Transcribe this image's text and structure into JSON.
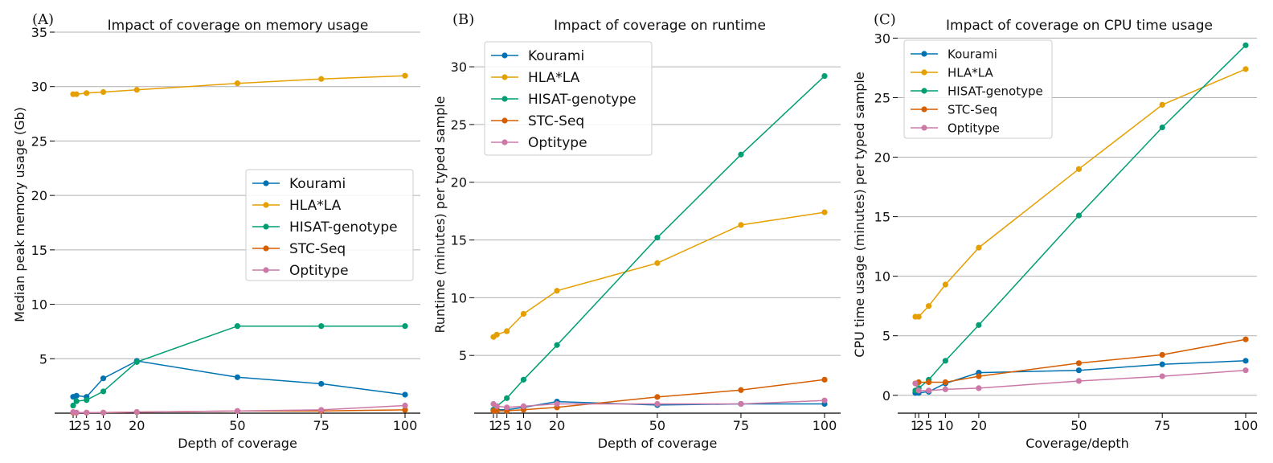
{
  "colors": {
    "Kourami": "#0072B2",
    "HLA*LA": "#E69F00",
    "HISAT-genotype": "#009E73",
    "STC-Seq": "#D55E00",
    "Optitype": "#CC79A7",
    "grid": "#b0b0b0",
    "axis": "#000000"
  },
  "chart_data": [
    {
      "type": "line",
      "panel": "(A)",
      "title": "Impact of coverage on memory usage",
      "xlabel": "Depth of coverage",
      "ylabel": "Median peak memory usage (Gb)",
      "x": [
        1,
        2,
        5,
        10,
        20,
        50,
        75,
        100
      ],
      "xticks": [
        1,
        2,
        5,
        10,
        20,
        50,
        75,
        100
      ],
      "xtick_labels": [
        "1",
        "2",
        "5",
        "10",
        "20",
        "50",
        "75",
        "100"
      ],
      "yticks": [
        5,
        10,
        15,
        20,
        25,
        30,
        35
      ],
      "ylim": [
        0,
        35
      ],
      "grid": "y",
      "legend": "center-right",
      "series": [
        {
          "name": "Kourami",
          "values": [
            1.5,
            1.6,
            1.5,
            3.2,
            4.8,
            3.3,
            2.7,
            1.7
          ]
        },
        {
          "name": "HLA*LA",
          "values": [
            29.3,
            29.3,
            29.4,
            29.5,
            29.7,
            30.3,
            30.7,
            31.0
          ]
        },
        {
          "name": "HISAT-genotype",
          "values": [
            0.7,
            1.1,
            1.2,
            2.0,
            4.7,
            8.0,
            8.0,
            8.0
          ]
        },
        {
          "name": "STC-Seq",
          "values": [
            0.05,
            0.05,
            0.05,
            0.05,
            0.1,
            0.2,
            0.2,
            0.3
          ]
        },
        {
          "name": "Optitype",
          "values": [
            0.1,
            0.05,
            0.05,
            0.05,
            0.1,
            0.2,
            0.3,
            0.7
          ]
        }
      ]
    },
    {
      "type": "line",
      "panel": "(B)",
      "title": "Impact of coverage on runtime",
      "xlabel": "Depth of coverage",
      "ylabel": "Runtime (minutes) per typed sample",
      "x": [
        1,
        2,
        5,
        10,
        20,
        50,
        75,
        100
      ],
      "xticks": [
        1,
        2,
        5,
        10,
        20,
        50,
        75,
        100
      ],
      "xtick_labels": [
        "1",
        "2",
        "5",
        "10",
        "20",
        "50",
        "75",
        "100"
      ],
      "yticks": [
        5,
        10,
        15,
        20,
        25,
        30
      ],
      "ylim": [
        0,
        33
      ],
      "grid": "y",
      "legend": "upper-left",
      "series": [
        {
          "name": "Kourami",
          "values": [
            0.3,
            0.3,
            0.3,
            0.5,
            1.0,
            0.7,
            0.8,
            0.8
          ]
        },
        {
          "name": "HLA*LA",
          "values": [
            6.6,
            6.8,
            7.1,
            8.6,
            10.6,
            13.0,
            16.3,
            17.4
          ]
        },
        {
          "name": "HISAT-genotype",
          "values": [
            0.3,
            0.6,
            1.3,
            2.9,
            5.9,
            15.2,
            22.4,
            29.2
          ]
        },
        {
          "name": "STC-Seq",
          "values": [
            0.2,
            0.2,
            0.2,
            0.3,
            0.5,
            1.4,
            2.0,
            2.9
          ]
        },
        {
          "name": "Optitype",
          "values": [
            0.8,
            0.6,
            0.5,
            0.6,
            0.8,
            0.8,
            0.8,
            1.1
          ]
        }
      ]
    },
    {
      "type": "line",
      "panel": "(C)",
      "title": "Impact of coverage on CPU time usage",
      "xlabel": "Coverage/depth",
      "ylabel": "CPU time usage (minutes) per typed sample",
      "x": [
        1,
        2,
        5,
        10,
        20,
        50,
        75,
        100
      ],
      "xticks": [
        1,
        2,
        5,
        10,
        20,
        50,
        75,
        100
      ],
      "xtick_labels": [
        "1",
        "2",
        "5",
        "10",
        "20",
        "50",
        "75",
        "100"
      ],
      "yticks": [
        0,
        5,
        10,
        15,
        20,
        25,
        30
      ],
      "ylim": [
        -1.5,
        30.5
      ],
      "grid": "y",
      "legend": "upper-left",
      "series": [
        {
          "name": "Kourami",
          "values": [
            0.2,
            0.2,
            0.3,
            1.0,
            1.9,
            2.1,
            2.6,
            2.9
          ]
        },
        {
          "name": "HLA*LA",
          "values": [
            6.6,
            6.6,
            7.5,
            9.3,
            12.4,
            19.0,
            24.4,
            27.4
          ]
        },
        {
          "name": "HISAT-genotype",
          "values": [
            0.4,
            0.6,
            1.3,
            2.9,
            5.9,
            15.1,
            22.5,
            29.4
          ]
        },
        {
          "name": "STC-Seq",
          "values": [
            1.0,
            1.1,
            1.1,
            1.1,
            1.6,
            2.7,
            3.4,
            4.7
          ]
        },
        {
          "name": "Optitype",
          "values": [
            1.0,
            0.4,
            0.4,
            0.5,
            0.6,
            1.2,
            1.6,
            2.1
          ]
        }
      ]
    }
  ]
}
